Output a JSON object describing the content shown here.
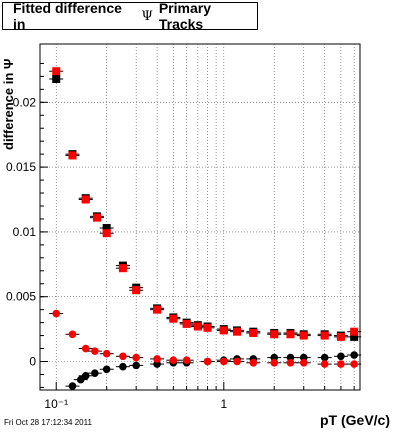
{
  "title": {
    "text_before": "Fitted difference in",
    "symbol": "Ψ",
    "text_after": "Primary Tracks"
  },
  "footer": {
    "timestamp": "Fri Oct 28 17:12:34 2011"
  },
  "colors": {
    "series_black": "#000000",
    "series_red": "#ff0000",
    "grid": "#555555"
  },
  "chart_data": {
    "type": "scatter",
    "title": "Fitted difference in Ψ Primary Tracks",
    "xlabel": "pT (GeV/c)",
    "ylabel": "difference in Ψ",
    "xscale": "log",
    "xlim": [
      0.08,
      6.5
    ],
    "ylim": [
      -0.0022,
      0.0245
    ],
    "grid": true,
    "x_tick_labels": [
      "10⁻¹",
      "1"
    ],
    "y_tick_labels": [
      "0",
      "0.005",
      "0.01",
      "0.015",
      "0.02"
    ],
    "x_tick_values": [
      0.1,
      1
    ],
    "y_tick_values": [
      0,
      0.005,
      0.01,
      0.015,
      0.02
    ],
    "series": [
      {
        "marker": "square",
        "color": "black",
        "x": [
          0.1,
          0.125,
          0.15,
          0.175,
          0.2,
          0.25,
          0.3,
          0.4,
          0.5,
          0.6,
          0.7,
          0.8,
          1.0,
          1.2,
          1.5,
          2.0,
          2.5,
          3.0,
          4.0,
          5.0,
          6.0
        ],
        "y": [
          0.0218,
          0.016,
          0.0126,
          0.0112,
          0.0103,
          0.0074,
          0.0057,
          0.0041,
          0.0034,
          0.003,
          0.0028,
          0.0027,
          0.0025,
          0.0024,
          0.0023,
          0.0022,
          0.0022,
          0.0021,
          0.0021,
          0.002,
          0.0019
        ]
      },
      {
        "marker": "square",
        "color": "red",
        "x": [
          0.1,
          0.125,
          0.15,
          0.175,
          0.2,
          0.25,
          0.3,
          0.4,
          0.5,
          0.6,
          0.7,
          0.8,
          1.0,
          1.2,
          1.5,
          2.0,
          2.5,
          3.0,
          4.0,
          5.0,
          6.0
        ],
        "y": [
          0.0224,
          0.0159,
          0.0125,
          0.0111,
          0.0099,
          0.0072,
          0.0055,
          0.004,
          0.0033,
          0.0029,
          0.0027,
          0.0026,
          0.0024,
          0.0023,
          0.0022,
          0.0021,
          0.0021,
          0.002,
          0.002,
          0.0019,
          0.0023
        ]
      },
      {
        "marker": "circle",
        "color": "black",
        "x": [
          0.125,
          0.14,
          0.15,
          0.17,
          0.2,
          0.25,
          0.3,
          0.4,
          0.5,
          0.6,
          0.8,
          1.0,
          1.2,
          1.5,
          2.0,
          2.5,
          3.0,
          4.0,
          5.0,
          6.0
        ],
        "y": [
          -0.0019,
          -0.0014,
          -0.0011,
          -0.0009,
          -0.0006,
          -0.0004,
          -0.0003,
          -0.0002,
          -0.0001,
          -0.0001,
          0.0,
          0.0001,
          0.0002,
          0.0002,
          0.0003,
          0.0003,
          0.0003,
          0.0003,
          0.0004,
          0.0005
        ]
      },
      {
        "marker": "circle",
        "color": "red",
        "x": [
          0.1,
          0.125,
          0.15,
          0.17,
          0.2,
          0.25,
          0.3,
          0.4,
          0.5,
          0.6,
          0.8,
          1.0,
          1.2,
          1.5,
          2.0,
          2.5,
          3.0,
          4.0,
          5.0,
          6.0
        ],
        "y": [
          0.0037,
          0.0021,
          0.001,
          0.0008,
          0.0006,
          0.0004,
          0.0003,
          0.0002,
          0.0001,
          0.0001,
          0.0,
          0.0,
          0.0,
          -0.0001,
          -0.0001,
          -0.0001,
          -0.0001,
          -0.0002,
          -0.0002,
          -0.0002
        ]
      }
    ]
  }
}
